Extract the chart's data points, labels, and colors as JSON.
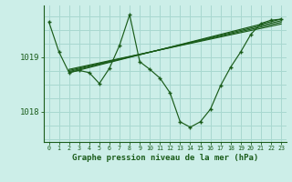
{
  "title": "Graphe pression niveau de la mer (hPa)",
  "bg_color": "#cceee8",
  "plot_bg_color": "#cceee8",
  "line_color": "#1a5c1a",
  "grid_color": "#a8d8d0",
  "text_color": "#1a5c1a",
  "xlim": [
    -0.5,
    23.5
  ],
  "ylim": [
    1017.45,
    1019.95
  ],
  "yticks": [
    1018,
    1019
  ],
  "xticks": [
    0,
    1,
    2,
    3,
    4,
    5,
    6,
    7,
    8,
    9,
    10,
    11,
    12,
    13,
    14,
    15,
    16,
    17,
    18,
    19,
    20,
    21,
    22,
    23
  ],
  "main_series": [
    [
      0,
      1019.65
    ],
    [
      1,
      1019.1
    ],
    [
      2,
      1018.72
    ],
    [
      3,
      1018.76
    ],
    [
      4,
      1018.72
    ],
    [
      5,
      1018.52
    ],
    [
      6,
      1018.8
    ],
    [
      7,
      1019.22
    ],
    [
      8,
      1019.78
    ],
    [
      9,
      1018.92
    ],
    [
      10,
      1018.78
    ],
    [
      11,
      1018.62
    ],
    [
      12,
      1018.35
    ],
    [
      13,
      1017.82
    ],
    [
      14,
      1017.72
    ],
    [
      15,
      1017.82
    ],
    [
      16,
      1018.05
    ],
    [
      17,
      1018.48
    ],
    [
      18,
      1018.82
    ],
    [
      19,
      1019.1
    ],
    [
      20,
      1019.42
    ],
    [
      21,
      1019.62
    ],
    [
      22,
      1019.68
    ],
    [
      23,
      1019.7
    ]
  ],
  "linear_lines": [
    [
      [
        2,
        1018.72
      ],
      [
        23,
        1019.7
      ]
    ],
    [
      [
        2,
        1018.74
      ],
      [
        23,
        1019.67
      ]
    ],
    [
      [
        2,
        1018.76
      ],
      [
        23,
        1019.64
      ]
    ],
    [
      [
        2,
        1018.78
      ],
      [
        23,
        1019.61
      ]
    ]
  ]
}
